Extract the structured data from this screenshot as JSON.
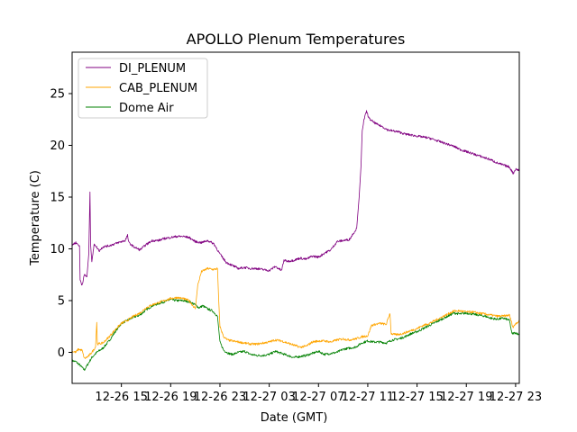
{
  "chart_data": {
    "type": "line",
    "title": "APOLLO Plenum Temperatures",
    "xlabel": "Date (GMT)",
    "ylabel": "Temperature (C)",
    "x_unit": "hours since 12-26 11:00 GMT",
    "xlim": [
      0,
      36.3
    ],
    "ylim": [
      -3,
      29
    ],
    "x_ticks": [
      {
        "x": 4,
        "label": "12-26 15"
      },
      {
        "x": 8,
        "label": "12-26 19"
      },
      {
        "x": 12,
        "label": "12-26 23"
      },
      {
        "x": 16,
        "label": "12-27 03"
      },
      {
        "x": 20,
        "label": "12-27 07"
      },
      {
        "x": 24,
        "label": "12-27 11"
      },
      {
        "x": 28,
        "label": "12-27 15"
      },
      {
        "x": 32,
        "label": "12-27 19"
      },
      {
        "x": 36,
        "label": "12-27 23"
      }
    ],
    "y_ticks": [
      0,
      5,
      10,
      15,
      20,
      25
    ],
    "grid": false,
    "legend_position": "top-left",
    "series": [
      {
        "name": "DI_PLENUM",
        "color": "#800080",
        "points": [
          [
            0.0,
            10.4
          ],
          [
            0.3,
            10.6
          ],
          [
            0.6,
            10.3
          ],
          [
            0.65,
            7.0
          ],
          [
            0.8,
            6.5
          ],
          [
            1.0,
            7.5
          ],
          [
            1.2,
            7.3
          ],
          [
            1.35,
            9.5
          ],
          [
            1.45,
            15.5
          ],
          [
            1.5,
            10.5
          ],
          [
            1.6,
            8.8
          ],
          [
            1.8,
            10.5
          ],
          [
            2.2,
            9.8
          ],
          [
            2.5,
            10.2
          ],
          [
            3.0,
            10.3
          ],
          [
            3.5,
            10.5
          ],
          [
            4.0,
            10.7
          ],
          [
            4.3,
            10.8
          ],
          [
            4.5,
            11.3
          ],
          [
            4.6,
            10.6
          ],
          [
            5.0,
            10.2
          ],
          [
            5.5,
            9.9
          ],
          [
            6.0,
            10.4
          ],
          [
            6.5,
            10.8
          ],
          [
            7.0,
            10.8
          ],
          [
            7.5,
            11.0
          ],
          [
            8.0,
            11.1
          ],
          [
            8.5,
            11.2
          ],
          [
            9.0,
            11.2
          ],
          [
            9.5,
            11.1
          ],
          [
            10.0,
            10.7
          ],
          [
            10.5,
            10.6
          ],
          [
            11.0,
            10.8
          ],
          [
            11.5,
            10.5
          ],
          [
            12.0,
            9.5
          ],
          [
            12.5,
            8.7
          ],
          [
            13.0,
            8.4
          ],
          [
            13.5,
            8.1
          ],
          [
            14.0,
            8.2
          ],
          [
            14.5,
            8.1
          ],
          [
            15.0,
            8.1
          ],
          [
            15.5,
            8.0
          ],
          [
            16.0,
            7.9
          ],
          [
            16.5,
            8.3
          ],
          [
            17.0,
            7.9
          ],
          [
            17.2,
            8.9
          ],
          [
            17.5,
            8.8
          ],
          [
            18.0,
            8.9
          ],
          [
            18.5,
            9.1
          ],
          [
            19.0,
            9.0
          ],
          [
            19.5,
            9.3
          ],
          [
            20.0,
            9.2
          ],
          [
            20.5,
            9.6
          ],
          [
            21.0,
            9.9
          ],
          [
            21.5,
            10.7
          ],
          [
            22.0,
            10.8
          ],
          [
            22.5,
            10.9
          ],
          [
            23.0,
            11.8
          ],
          [
            23.1,
            12.0
          ],
          [
            23.3,
            15.0
          ],
          [
            23.45,
            18.0
          ],
          [
            23.55,
            21.5
          ],
          [
            23.7,
            22.5
          ],
          [
            23.9,
            23.3
          ],
          [
            24.1,
            22.6
          ],
          [
            24.4,
            22.3
          ],
          [
            24.8,
            22.0
          ],
          [
            25.2,
            21.8
          ],
          [
            25.6,
            21.5
          ],
          [
            26.0,
            21.4
          ],
          [
            26.5,
            21.3
          ],
          [
            27.0,
            21.1
          ],
          [
            27.5,
            21.0
          ],
          [
            28.0,
            20.9
          ],
          [
            28.5,
            20.8
          ],
          [
            29.0,
            20.7
          ],
          [
            29.5,
            20.5
          ],
          [
            30.0,
            20.3
          ],
          [
            30.5,
            20.1
          ],
          [
            31.0,
            19.9
          ],
          [
            31.5,
            19.6
          ],
          [
            32.0,
            19.4
          ],
          [
            32.5,
            19.2
          ],
          [
            33.0,
            19.0
          ],
          [
            33.5,
            18.8
          ],
          [
            34.0,
            18.6
          ],
          [
            34.5,
            18.3
          ],
          [
            35.0,
            18.1
          ],
          [
            35.5,
            17.9
          ],
          [
            35.8,
            17.3
          ],
          [
            36.0,
            17.7
          ],
          [
            36.3,
            17.6
          ]
        ]
      },
      {
        "name": "CAB_PLENUM",
        "color": "#FFA500",
        "points": [
          [
            0.0,
            0.1
          ],
          [
            0.3,
            0.0
          ],
          [
            0.5,
            0.3
          ],
          [
            0.8,
            0.2
          ],
          [
            1.0,
            -0.6
          ],
          [
            1.3,
            -0.4
          ],
          [
            1.6,
            0.0
          ],
          [
            1.9,
            0.5
          ],
          [
            2.0,
            2.9
          ],
          [
            2.05,
            0.8
          ],
          [
            2.5,
            0.9
          ],
          [
            3.0,
            1.5
          ],
          [
            3.5,
            2.2
          ],
          [
            4.0,
            2.8
          ],
          [
            4.5,
            3.1
          ],
          [
            5.0,
            3.5
          ],
          [
            5.5,
            3.8
          ],
          [
            6.0,
            4.3
          ],
          [
            6.5,
            4.6
          ],
          [
            7.0,
            4.8
          ],
          [
            7.5,
            5.0
          ],
          [
            8.0,
            5.2
          ],
          [
            8.5,
            5.3
          ],
          [
            9.0,
            5.2
          ],
          [
            9.5,
            5.0
          ],
          [
            10.0,
            4.2
          ],
          [
            10.2,
            6.5
          ],
          [
            10.5,
            7.8
          ],
          [
            11.0,
            8.1
          ],
          [
            11.5,
            8.0
          ],
          [
            11.8,
            8.1
          ],
          [
            11.9,
            5.0
          ],
          [
            12.0,
            2.5
          ],
          [
            12.3,
            1.5
          ],
          [
            12.6,
            1.2
          ],
          [
            13.0,
            1.1
          ],
          [
            13.5,
            1.0
          ],
          [
            14.0,
            0.9
          ],
          [
            14.5,
            0.8
          ],
          [
            15.0,
            0.8
          ],
          [
            15.5,
            0.9
          ],
          [
            16.0,
            1.0
          ],
          [
            16.5,
            1.2
          ],
          [
            17.0,
            1.1
          ],
          [
            17.5,
            0.9
          ],
          [
            18.0,
            0.7
          ],
          [
            18.5,
            0.5
          ],
          [
            19.0,
            0.6
          ],
          [
            19.5,
            1.0
          ],
          [
            20.0,
            1.1
          ],
          [
            20.5,
            1.1
          ],
          [
            21.0,
            1.0
          ],
          [
            21.5,
            1.2
          ],
          [
            22.0,
            1.3
          ],
          [
            22.5,
            1.2
          ],
          [
            23.0,
            1.3
          ],
          [
            23.5,
            1.5
          ],
          [
            24.0,
            1.6
          ],
          [
            24.3,
            2.6
          ],
          [
            24.6,
            2.7
          ],
          [
            25.0,
            2.8
          ],
          [
            25.5,
            2.7
          ],
          [
            25.8,
            3.8
          ],
          [
            25.9,
            1.8
          ],
          [
            26.3,
            1.7
          ],
          [
            26.8,
            1.8
          ],
          [
            27.5,
            2.1
          ],
          [
            28.0,
            2.3
          ],
          [
            28.5,
            2.6
          ],
          [
            29.0,
            2.8
          ],
          [
            29.5,
            3.1
          ],
          [
            30.0,
            3.4
          ],
          [
            30.5,
            3.7
          ],
          [
            31.0,
            4.0
          ],
          [
            31.5,
            4.0
          ],
          [
            32.0,
            3.9
          ],
          [
            32.5,
            3.9
          ],
          [
            33.0,
            3.8
          ],
          [
            33.5,
            3.7
          ],
          [
            34.0,
            3.6
          ],
          [
            34.5,
            3.5
          ],
          [
            35.0,
            3.5
          ],
          [
            35.5,
            3.6
          ],
          [
            35.8,
            2.4
          ],
          [
            36.0,
            2.8
          ],
          [
            36.3,
            3.0
          ]
        ]
      },
      {
        "name": "Dome Air",
        "color": "#008000",
        "points": [
          [
            0.0,
            -0.8
          ],
          [
            0.3,
            -0.9
          ],
          [
            0.6,
            -1.2
          ],
          [
            1.0,
            -1.7
          ],
          [
            1.3,
            -1.1
          ],
          [
            1.6,
            -0.5
          ],
          [
            2.0,
            0.0
          ],
          [
            2.5,
            0.4
          ],
          [
            3.0,
            1.1
          ],
          [
            3.5,
            2.0
          ],
          [
            4.0,
            2.8
          ],
          [
            4.5,
            3.1
          ],
          [
            5.0,
            3.4
          ],
          [
            5.5,
            3.6
          ],
          [
            6.0,
            4.1
          ],
          [
            6.5,
            4.5
          ],
          [
            7.0,
            4.7
          ],
          [
            7.5,
            4.9
          ],
          [
            8.0,
            5.1
          ],
          [
            8.5,
            5.0
          ],
          [
            9.0,
            5.0
          ],
          [
            9.5,
            4.9
          ],
          [
            10.0,
            4.6
          ],
          [
            10.3,
            4.3
          ],
          [
            10.6,
            4.5
          ],
          [
            11.0,
            4.2
          ],
          [
            11.4,
            4.0
          ],
          [
            11.8,
            3.5
          ],
          [
            12.0,
            1.0
          ],
          [
            12.3,
            0.2
          ],
          [
            12.7,
            -0.1
          ],
          [
            13.0,
            -0.2
          ],
          [
            13.5,
            0.0
          ],
          [
            14.0,
            0.1
          ],
          [
            14.5,
            -0.2
          ],
          [
            15.0,
            -0.3
          ],
          [
            15.5,
            -0.3
          ],
          [
            16.0,
            -0.2
          ],
          [
            16.5,
            0.1
          ],
          [
            17.0,
            -0.1
          ],
          [
            17.5,
            -0.3
          ],
          [
            18.0,
            -0.5
          ],
          [
            18.5,
            -0.4
          ],
          [
            19.0,
            -0.3
          ],
          [
            19.5,
            -0.1
          ],
          [
            20.0,
            0.1
          ],
          [
            20.5,
            -0.2
          ],
          [
            21.0,
            -0.1
          ],
          [
            21.5,
            0.0
          ],
          [
            22.0,
            0.3
          ],
          [
            22.5,
            0.4
          ],
          [
            23.0,
            0.5
          ],
          [
            23.5,
            0.9
          ],
          [
            24.0,
            1.1
          ],
          [
            24.5,
            1.0
          ],
          [
            25.0,
            1.0
          ],
          [
            25.5,
            0.9
          ],
          [
            26.0,
            1.2
          ],
          [
            26.5,
            1.3
          ],
          [
            27.0,
            1.5
          ],
          [
            27.5,
            1.8
          ],
          [
            28.0,
            2.0
          ],
          [
            28.5,
            2.3
          ],
          [
            29.0,
            2.6
          ],
          [
            29.5,
            2.9
          ],
          [
            30.0,
            3.2
          ],
          [
            30.5,
            3.5
          ],
          [
            31.0,
            3.8
          ],
          [
            31.5,
            3.7
          ],
          [
            32.0,
            3.8
          ],
          [
            32.5,
            3.7
          ],
          [
            33.0,
            3.6
          ],
          [
            33.5,
            3.5
          ],
          [
            34.0,
            3.3
          ],
          [
            34.5,
            3.2
          ],
          [
            35.0,
            3.3
          ],
          [
            35.5,
            3.1
          ],
          [
            35.7,
            1.8
          ],
          [
            36.0,
            1.9
          ],
          [
            36.3,
            1.7
          ]
        ]
      }
    ]
  }
}
